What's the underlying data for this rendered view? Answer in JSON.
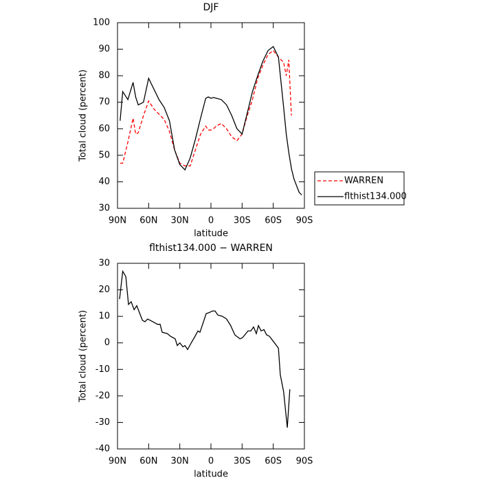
{
  "chart_data": [
    {
      "type": "line",
      "title": "DJF",
      "xlabel": "latitude",
      "ylabel": "Total cloud (percent)",
      "x": [
        87.5,
        85,
        80,
        75,
        72.5,
        70,
        65,
        60,
        55,
        50,
        45,
        40,
        35,
        30,
        25,
        20,
        15,
        10,
        5,
        2.5,
        0,
        -2.5,
        -5,
        -10,
        -15,
        -20,
        -25,
        -30,
        -35,
        -40,
        -45,
        -50,
        -55,
        -60,
        -65,
        -70,
        -72.5,
        -75,
        -77.5,
        -80,
        -85,
        -87.5
      ],
      "series": [
        {
          "name": "WARREN",
          "color": "#ff0000",
          "dashed": true,
          "values": [
            47,
            47,
            55,
            64,
            58,
            58.5,
            65,
            70.5,
            67.5,
            65.5,
            63.5,
            59,
            52,
            47,
            46,
            46,
            52,
            58,
            61,
            59.5,
            59.5,
            60,
            61,
            62,
            60,
            57,
            55.5,
            58,
            65,
            71,
            79,
            84,
            88,
            89.5,
            87,
            85,
            80,
            86,
            65,
            null,
            null,
            null
          ]
        },
        {
          "name": "flthist134.000",
          "color": "#000000",
          "dashed": false,
          "values": [
            63,
            74,
            71,
            77.5,
            72,
            69,
            70,
            79,
            75,
            71,
            68,
            63,
            52,
            46.5,
            44.5,
            49,
            56,
            64,
            71.5,
            72,
            71.5,
            71.8,
            71.5,
            71,
            69,
            65,
            60,
            58,
            66,
            74,
            80,
            85.5,
            89.5,
            91,
            87,
            68,
            58,
            51,
            45,
            41,
            36,
            35
          ]
        }
      ],
      "xlim": [
        90,
        -90
      ],
      "ylim": [
        30,
        100
      ],
      "xticks": [
        {
          "value": 90,
          "label": "90N"
        },
        {
          "value": 60,
          "label": "60N"
        },
        {
          "value": 30,
          "label": "30N"
        },
        0,
        {
          "value": -30,
          "label": "30S"
        },
        {
          "value": -60,
          "label": "60S"
        },
        {
          "value": -90,
          "label": "90S"
        }
      ],
      "yticks": [
        30,
        40,
        50,
        60,
        70,
        80,
        90,
        100
      ],
      "legend": "right"
    },
    {
      "type": "line",
      "title": "flthist134.000 − WARREN",
      "xlabel": "latitude",
      "ylabel": "Total cloud (percent)",
      "x": [
        88,
        85,
        82,
        79.4,
        76.8,
        74,
        71.5,
        66,
        63.5,
        61,
        56,
        51.6,
        49,
        47,
        42,
        39,
        34.4,
        32.4,
        30,
        27,
        25,
        22.5,
        19,
        16,
        12.5,
        10.6,
        8,
        4.6,
        1.3,
        -1.3,
        -4,
        -6.6,
        -11,
        -15,
        -19,
        -23,
        -28,
        -30.5,
        -35.7,
        -38.4,
        -41,
        -43.7,
        -45.7,
        -48.3,
        -51,
        -53.6,
        -56.3,
        -60.2,
        -65,
        -66.8,
        -70,
        -73.5,
        -76
      ],
      "values": [
        16.5,
        27,
        25,
        14.5,
        15.5,
        12.5,
        14,
        8.5,
        8,
        9,
        8,
        7,
        7,
        4,
        3.5,
        2.5,
        1.5,
        -1,
        0,
        -1.5,
        -1,
        -2.5,
        0,
        2,
        4.5,
        4,
        7,
        11,
        11.5,
        12,
        12,
        10.5,
        10,
        9,
        6.5,
        3,
        1.5,
        2,
        4.5,
        4.5,
        6,
        3.5,
        6.5,
        4.5,
        5,
        3,
        2.5,
        0.5,
        -2,
        -12,
        -18.5,
        -32,
        -17.5
      ],
      "color": "#000000",
      "xlim": [
        90,
        -90
      ],
      "ylim": [
        -40,
        30
      ],
      "xticks": [
        {
          "value": 90,
          "label": "90N"
        },
        {
          "value": 60,
          "label": "60N"
        },
        {
          "value": 30,
          "label": "30N"
        },
        0,
        {
          "value": -30,
          "label": "30S"
        },
        {
          "value": -60,
          "label": "60S"
        },
        {
          "value": -90,
          "label": "90S"
        }
      ],
      "yticks": [
        -40,
        -30,
        -20,
        -10,
        0,
        10,
        20,
        30
      ]
    }
  ]
}
